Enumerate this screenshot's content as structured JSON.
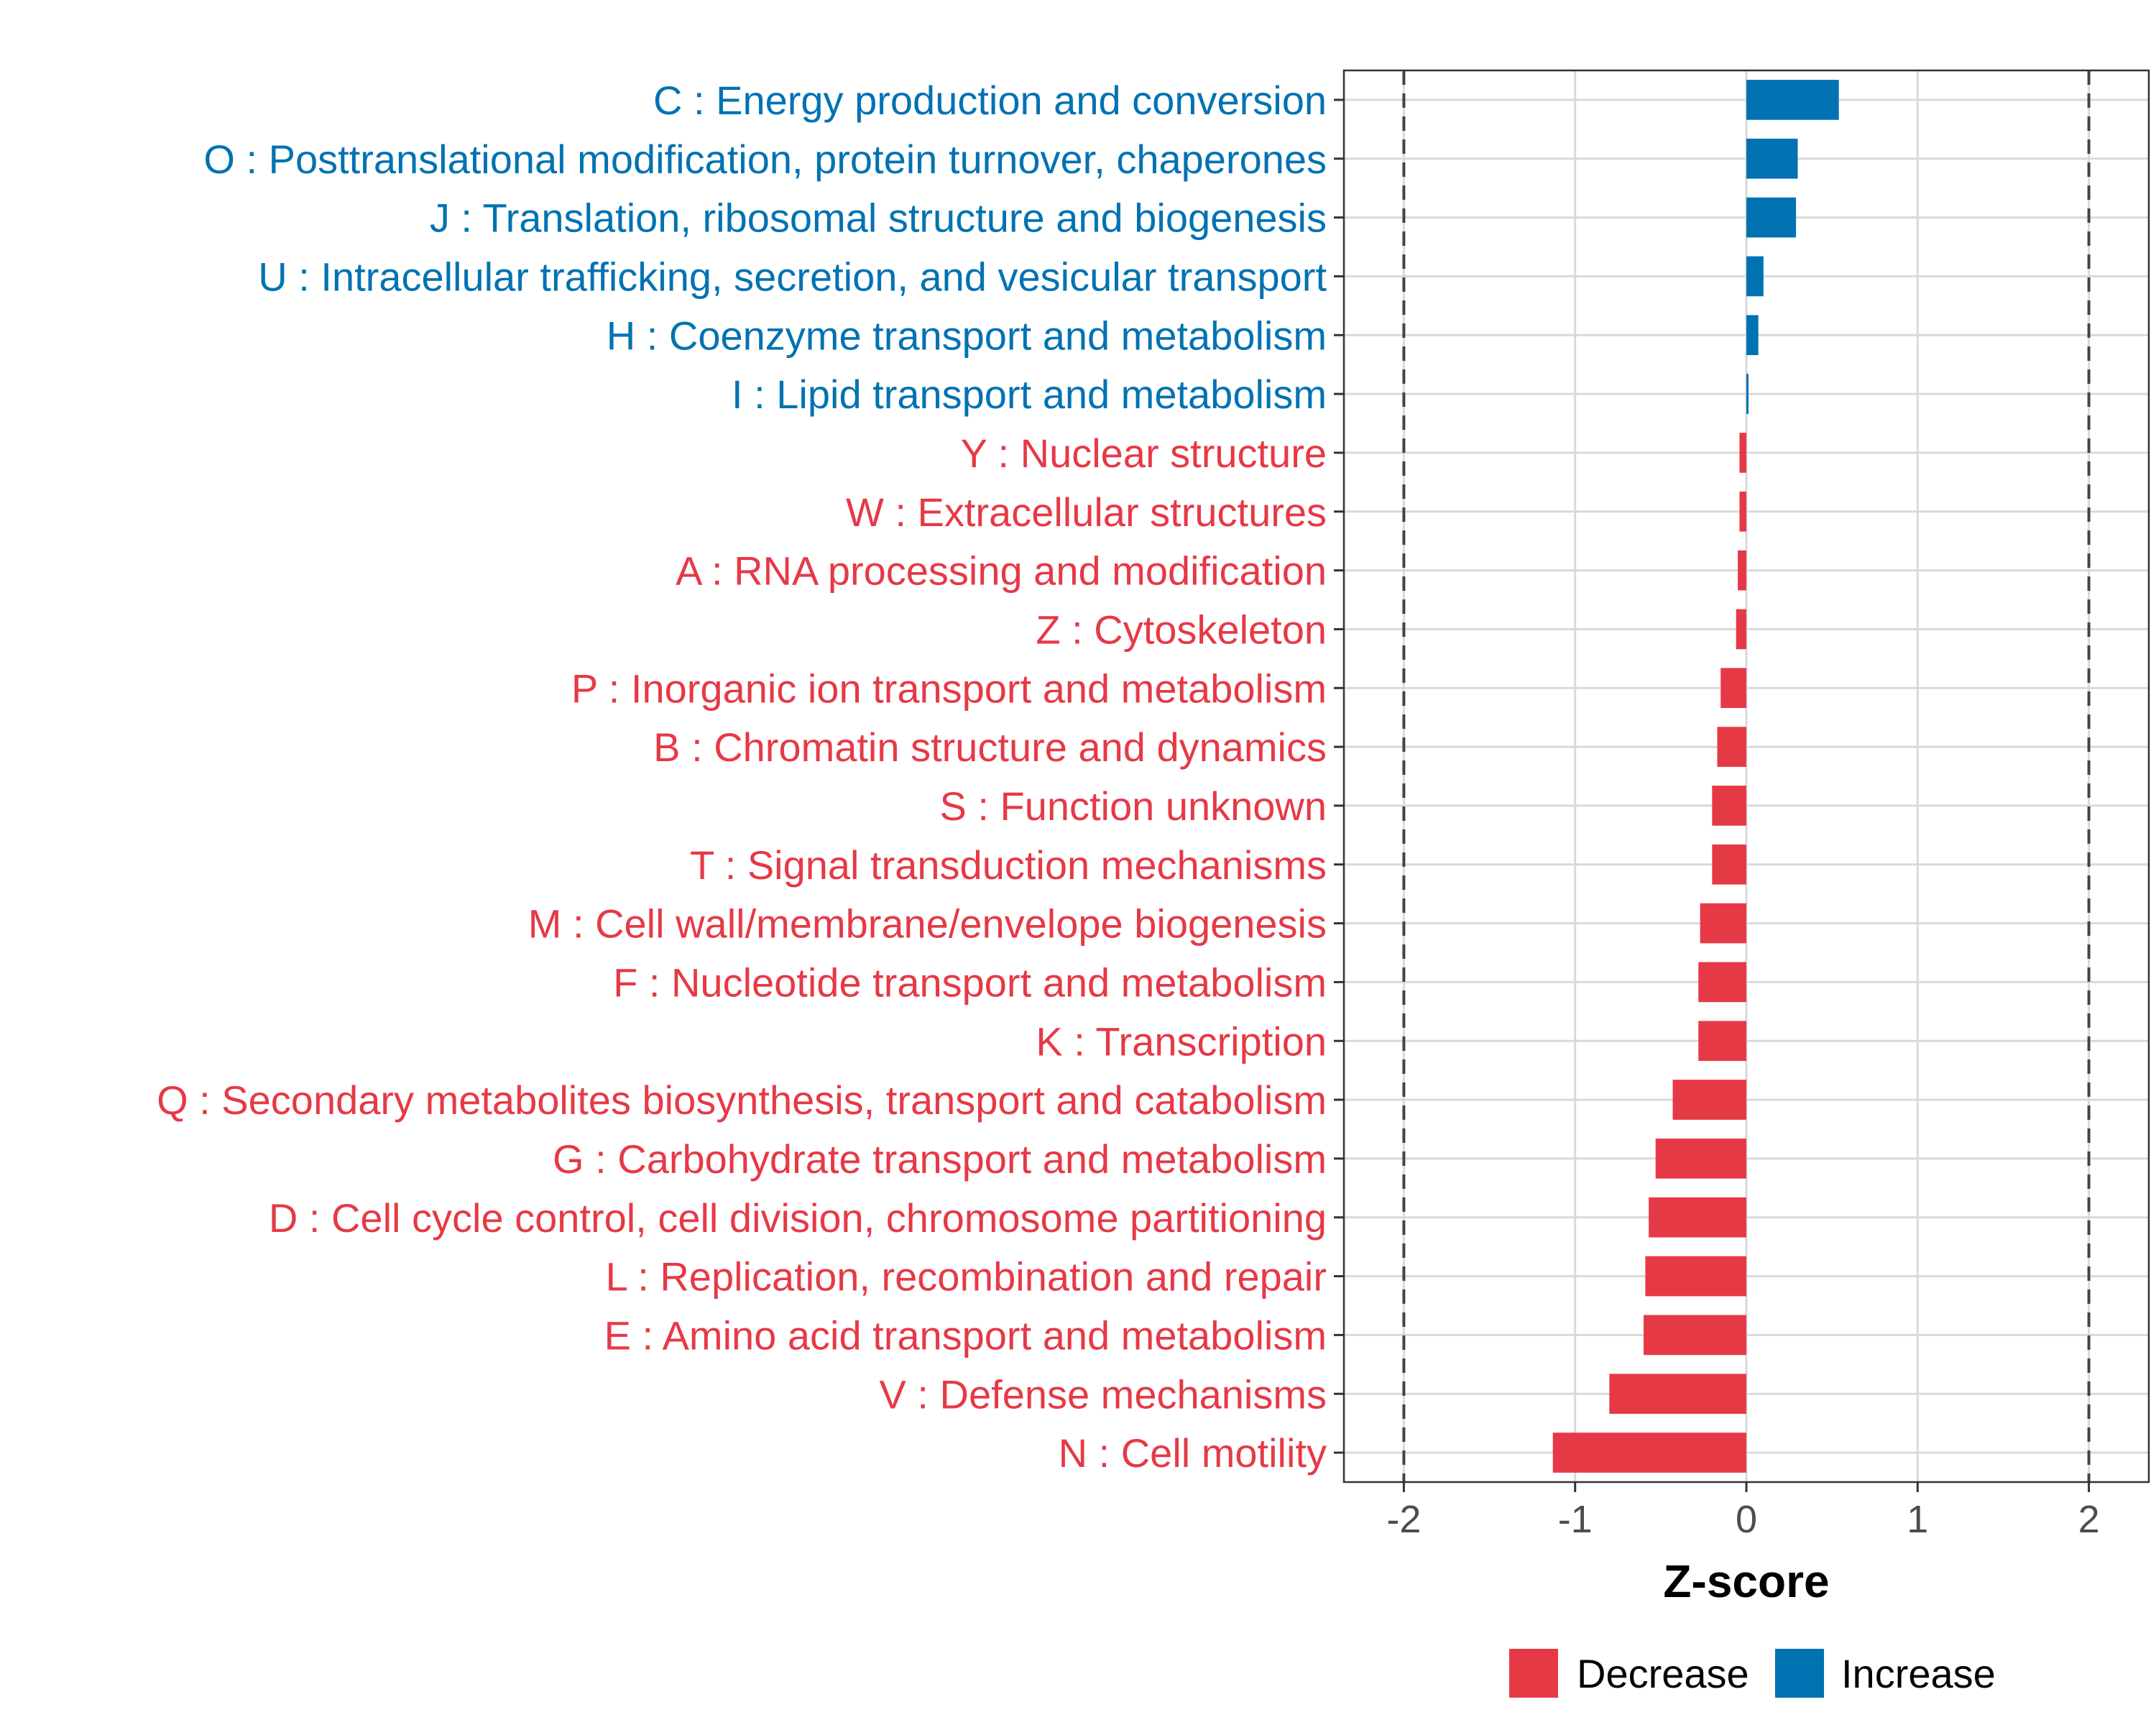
{
  "chart_data": {
    "type": "bar",
    "orientation": "horizontal",
    "title": "",
    "xlabel": "Z-score",
    "ylabel": "",
    "xlim": [
      -2.35,
      2.35
    ],
    "xticks": [
      -2,
      -1,
      0,
      1,
      2
    ],
    "xtick_labels": [
      "-2",
      "-1",
      "0",
      "1",
      "2"
    ],
    "reference_lines": [
      -2,
      2
    ],
    "grid": true,
    "colors": {
      "Decrease": "#e63946",
      "Increase": "#0072b2"
    },
    "legend": {
      "position": "bottom",
      "entries": [
        {
          "label": "Decrease",
          "color": "#e63946"
        },
        {
          "label": "Increase",
          "color": "#0072b2"
        }
      ]
    },
    "bars": [
      {
        "label": "C : Energy production and conversion",
        "value": 0.54,
        "direction": "Increase"
      },
      {
        "label": "O : Posttranslational modification, protein turnover, chaperones",
        "value": 0.3,
        "direction": "Increase"
      },
      {
        "label": "J : Translation, ribosomal structure and biogenesis",
        "value": 0.29,
        "direction": "Increase"
      },
      {
        "label": "U : Intracellular trafficking, secretion, and vesicular transport",
        "value": 0.1,
        "direction": "Increase"
      },
      {
        "label": "H : Coenzyme transport and metabolism",
        "value": 0.07,
        "direction": "Increase"
      },
      {
        "label": "I : Lipid transport and metabolism",
        "value": 0.01,
        "direction": "Increase"
      },
      {
        "label": "Y : Nuclear structure",
        "value": -0.04,
        "direction": "Decrease"
      },
      {
        "label": "W : Extracellular structures",
        "value": -0.04,
        "direction": "Decrease"
      },
      {
        "label": "A : RNA processing and modification",
        "value": -0.05,
        "direction": "Decrease"
      },
      {
        "label": "Z : Cytoskeleton",
        "value": -0.06,
        "direction": "Decrease"
      },
      {
        "label": "P : Inorganic ion transport and metabolism",
        "value": -0.15,
        "direction": "Decrease"
      },
      {
        "label": "B : Chromatin structure and dynamics",
        "value": -0.17,
        "direction": "Decrease"
      },
      {
        "label": "S : Function unknown",
        "value": -0.2,
        "direction": "Decrease"
      },
      {
        "label": "T : Signal transduction mechanisms",
        "value": -0.2,
        "direction": "Decrease"
      },
      {
        "label": "M : Cell wall/membrane/envelope biogenesis",
        "value": -0.27,
        "direction": "Decrease"
      },
      {
        "label": "F : Nucleotide transport and metabolism",
        "value": -0.28,
        "direction": "Decrease"
      },
      {
        "label": "K : Transcription",
        "value": -0.28,
        "direction": "Decrease"
      },
      {
        "label": "Q : Secondary metabolites biosynthesis, transport and catabolism",
        "value": -0.43,
        "direction": "Decrease"
      },
      {
        "label": "G : Carbohydrate transport and metabolism",
        "value": -0.53,
        "direction": "Decrease"
      },
      {
        "label": "D : Cell cycle control, cell division, chromosome partitioning",
        "value": -0.57,
        "direction": "Decrease"
      },
      {
        "label": "L : Replication, recombination and repair",
        "value": -0.59,
        "direction": "Decrease"
      },
      {
        "label": "E : Amino acid transport and metabolism",
        "value": -0.6,
        "direction": "Decrease"
      },
      {
        "label": "V : Defense mechanisms",
        "value": -0.8,
        "direction": "Decrease"
      },
      {
        "label": "N : Cell motility",
        "value": -1.13,
        "direction": "Decrease"
      }
    ]
  }
}
